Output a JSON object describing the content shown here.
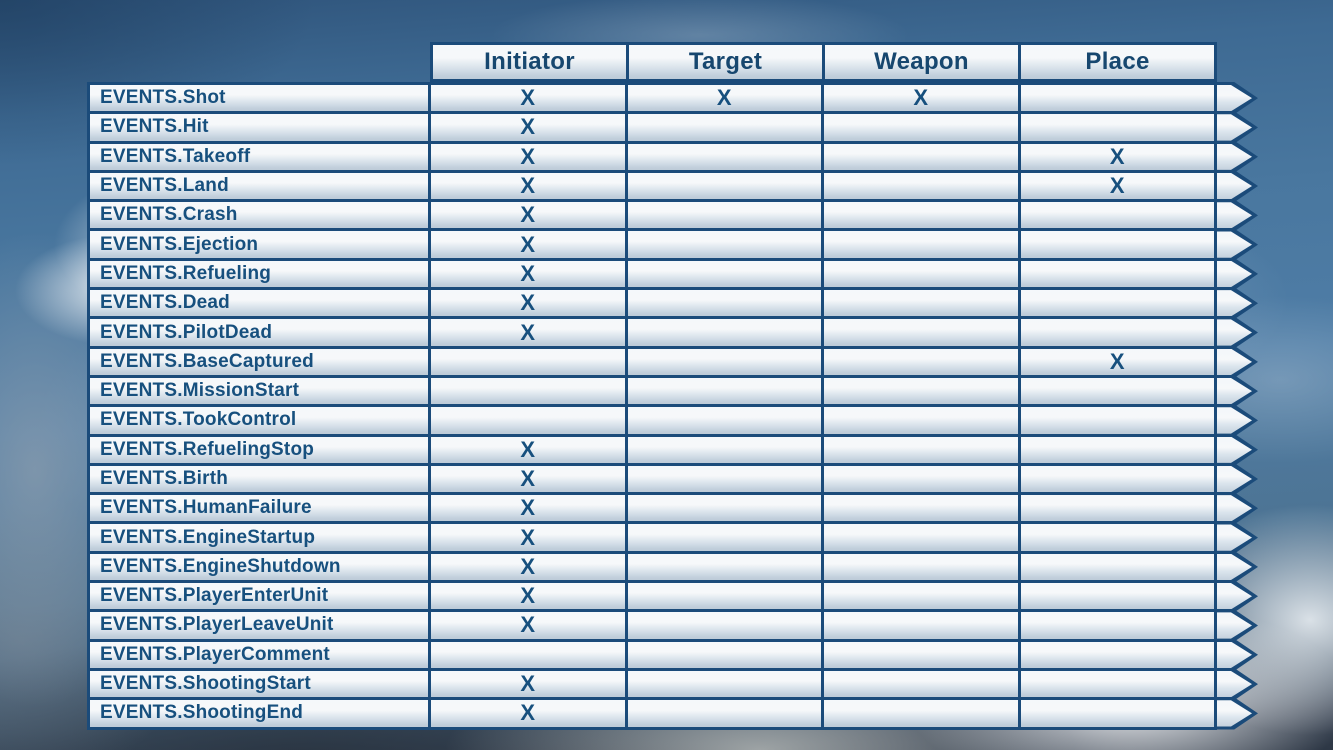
{
  "table": {
    "columns": [
      "Initiator",
      "Target",
      "Weapon",
      "Place"
    ],
    "mark_symbol": "X",
    "rows": [
      {
        "label": "EVENTS.Shot",
        "marks": [
          true,
          true,
          true,
          false
        ]
      },
      {
        "label": "EVENTS.Hit",
        "marks": [
          true,
          false,
          false,
          false
        ]
      },
      {
        "label": "EVENTS.Takeoff",
        "marks": [
          true,
          false,
          false,
          true
        ]
      },
      {
        "label": "EVENTS.Land",
        "marks": [
          true,
          false,
          false,
          true
        ]
      },
      {
        "label": "EVENTS.Crash",
        "marks": [
          true,
          false,
          false,
          false
        ]
      },
      {
        "label": "EVENTS.Ejection",
        "marks": [
          true,
          false,
          false,
          false
        ]
      },
      {
        "label": "EVENTS.Refueling",
        "marks": [
          true,
          false,
          false,
          false
        ]
      },
      {
        "label": "EVENTS.Dead",
        "marks": [
          true,
          false,
          false,
          false
        ]
      },
      {
        "label": "EVENTS.PilotDead",
        "marks": [
          true,
          false,
          false,
          false
        ]
      },
      {
        "label": "EVENTS.BaseCaptured",
        "marks": [
          false,
          false,
          false,
          true
        ]
      },
      {
        "label": "EVENTS.MissionStart",
        "marks": [
          false,
          false,
          false,
          false
        ]
      },
      {
        "label": "EVENTS.TookControl",
        "marks": [
          false,
          false,
          false,
          false
        ]
      },
      {
        "label": "EVENTS.RefuelingStop",
        "marks": [
          true,
          false,
          false,
          false
        ]
      },
      {
        "label": "EVENTS.Birth",
        "marks": [
          true,
          false,
          false,
          false
        ]
      },
      {
        "label": "EVENTS.HumanFailure",
        "marks": [
          true,
          false,
          false,
          false
        ]
      },
      {
        "label": "EVENTS.EngineStartup",
        "marks": [
          true,
          false,
          false,
          false
        ]
      },
      {
        "label": "EVENTS.EngineShutdown",
        "marks": [
          true,
          false,
          false,
          false
        ]
      },
      {
        "label": "EVENTS.PlayerEnterUnit",
        "marks": [
          true,
          false,
          false,
          false
        ]
      },
      {
        "label": "EVENTS.PlayerLeaveUnit",
        "marks": [
          true,
          false,
          false,
          false
        ]
      },
      {
        "label": "EVENTS.PlayerComment",
        "marks": [
          false,
          false,
          false,
          false
        ]
      },
      {
        "label": "EVENTS.ShootingStart",
        "marks": [
          true,
          false,
          false,
          false
        ]
      },
      {
        "label": "EVENTS.ShootingEnd",
        "marks": [
          true,
          false,
          false,
          false
        ]
      }
    ]
  },
  "colors": {
    "border_navy": "#1b4b7a",
    "text_navy": "#17507e",
    "sky_blue": "#4f7da6"
  }
}
